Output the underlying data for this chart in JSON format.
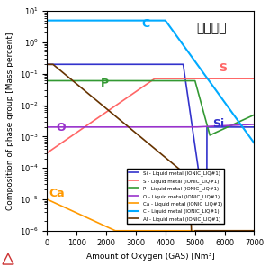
{
  "title": "スラグ有",
  "xlabel": "Amount of Oxygen (GAS) [Nm³]",
  "ylabel": "Composition of phase group [Mass percent]",
  "xlim": [
    0,
    7000
  ],
  "ylim_log": [
    -6,
    1
  ],
  "legend_entries": [
    "Si - Liquid metal (IONIC_LIQ#1)",
    "S - Liquid metal (IONIC_LIQ#1)",
    "P - Liquid metal (IONIC_LIQ#1)",
    "O - Liquid metal (IONIC_LIQ#1)",
    "Ca - Liquid metal (IONIC_LIQ#1)",
    "C - Liquid metal (IONIC_LIQ#1)",
    "Al - Liquid metal (IONIC_LIQ#1)"
  ],
  "legend_colors": [
    "#3333cc",
    "#ff6666",
    "#339933",
    "#9933cc",
    "#ff9900",
    "#00aaff",
    "#663300"
  ],
  "label_Si": "Si",
  "label_S": "S",
  "label_P": "P",
  "label_O": "O",
  "label_Ca": "Ca",
  "label_C": "C",
  "label_Al": "Al",
  "background_color": "#ffffff"
}
